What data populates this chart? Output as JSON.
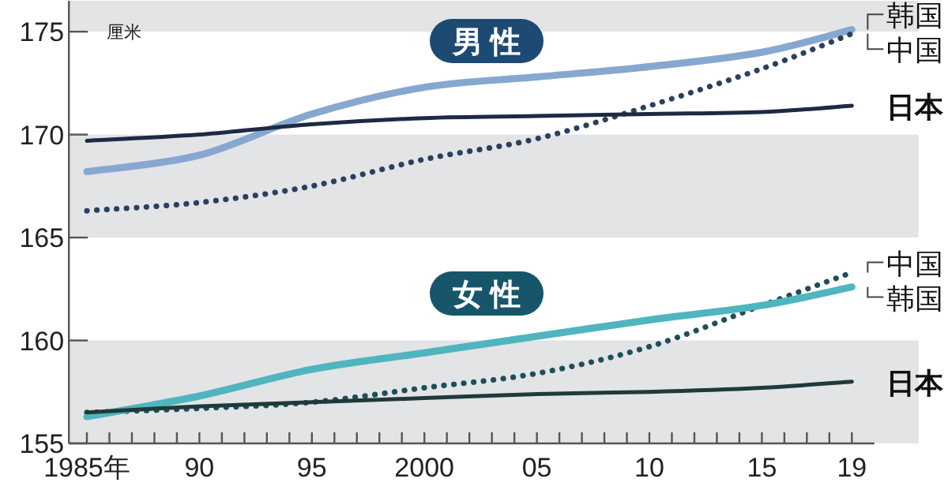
{
  "chart_data": {
    "type": "line",
    "ylabel": "厘米",
    "annotations": [
      "男 性",
      "女 性"
    ],
    "xlim": [
      1984.2,
      2020
    ],
    "ylim": [
      155,
      176.5
    ],
    "xticks": [
      {
        "value": 1985,
        "label": "1985年"
      },
      {
        "value": 1986,
        "label": null
      },
      {
        "value": 1987,
        "label": null
      },
      {
        "value": 1988,
        "label": null
      },
      {
        "value": 1989,
        "label": null
      },
      {
        "value": 1990,
        "label": "90"
      },
      {
        "value": 1991,
        "label": null
      },
      {
        "value": 1992,
        "label": null
      },
      {
        "value": 1993,
        "label": null
      },
      {
        "value": 1994,
        "label": null
      },
      {
        "value": 1995,
        "label": "95"
      },
      {
        "value": 1996,
        "label": null
      },
      {
        "value": 1997,
        "label": null
      },
      {
        "value": 1998,
        "label": null
      },
      {
        "value": 1999,
        "label": null
      },
      {
        "value": 2000,
        "label": "2000"
      },
      {
        "value": 2001,
        "label": null
      },
      {
        "value": 2002,
        "label": null
      },
      {
        "value": 2003,
        "label": null
      },
      {
        "value": 2004,
        "label": null
      },
      {
        "value": 2005,
        "label": "05"
      },
      {
        "value": 2006,
        "label": null
      },
      {
        "value": 2007,
        "label": null
      },
      {
        "value": 2008,
        "label": null
      },
      {
        "value": 2009,
        "label": null
      },
      {
        "value": 2010,
        "label": "10"
      },
      {
        "value": 2011,
        "label": null
      },
      {
        "value": 2012,
        "label": null
      },
      {
        "value": 2013,
        "label": null
      },
      {
        "value": 2014,
        "label": null
      },
      {
        "value": 2015,
        "label": "15"
      },
      {
        "value": 2016,
        "label": null
      },
      {
        "value": 2017,
        "label": null
      },
      {
        "value": 2018,
        "label": null
      },
      {
        "value": 2019,
        "label": "19"
      }
    ],
    "yticks": [
      155,
      160,
      165,
      170,
      175
    ],
    "x": [
      1985,
      1990,
      1995,
      2000,
      2005,
      2010,
      2015,
      2019
    ],
    "bands": [
      {
        "axis": "y",
        "from": 175,
        "to": 176.5,
        "color": "#e3e4e6"
      },
      {
        "axis": "y",
        "from": 165,
        "to": 170,
        "color": "#e3e4e6"
      },
      {
        "axis": "y",
        "from": 155,
        "to": 160,
        "color": "#e3e4e6"
      }
    ],
    "legend": false,
    "grid": false,
    "series": [
      {
        "name": "韩国",
        "color": "#86a8d0",
        "line_style": "solid",
        "values": [
          168.2,
          169.0,
          171.0,
          172.3,
          172.8,
          173.3,
          174.0,
          175.1
        ]
      },
      {
        "name": "中国",
        "color": "#2b4060",
        "line_style": "dotted",
        "values": [
          166.3,
          166.7,
          167.5,
          168.8,
          169.8,
          171.4,
          173.2,
          174.9
        ]
      },
      {
        "name": "日本",
        "color": "#1e2a44",
        "line_style": "solid",
        "values": [
          169.7,
          170.0,
          170.5,
          170.8,
          170.9,
          171.0,
          171.1,
          171.4
        ]
      },
      {
        "name": "中国",
        "color": "#1d4f5a",
        "line_style": "dotted",
        "values": [
          156.5,
          156.7,
          157.0,
          157.7,
          158.4,
          159.7,
          161.7,
          163.3
        ]
      },
      {
        "name": "韩国",
        "color": "#4fb5bf",
        "line_style": "solid",
        "values": [
          156.3,
          157.3,
          158.6,
          159.4,
          160.2,
          161.0,
          161.7,
          162.6
        ]
      },
      {
        "name": "日本",
        "color": "#1f3a3a",
        "line_style": "solid",
        "values": [
          156.5,
          156.8,
          157.0,
          157.2,
          157.4,
          157.5,
          157.7,
          158.0
        ]
      }
    ]
  }
}
